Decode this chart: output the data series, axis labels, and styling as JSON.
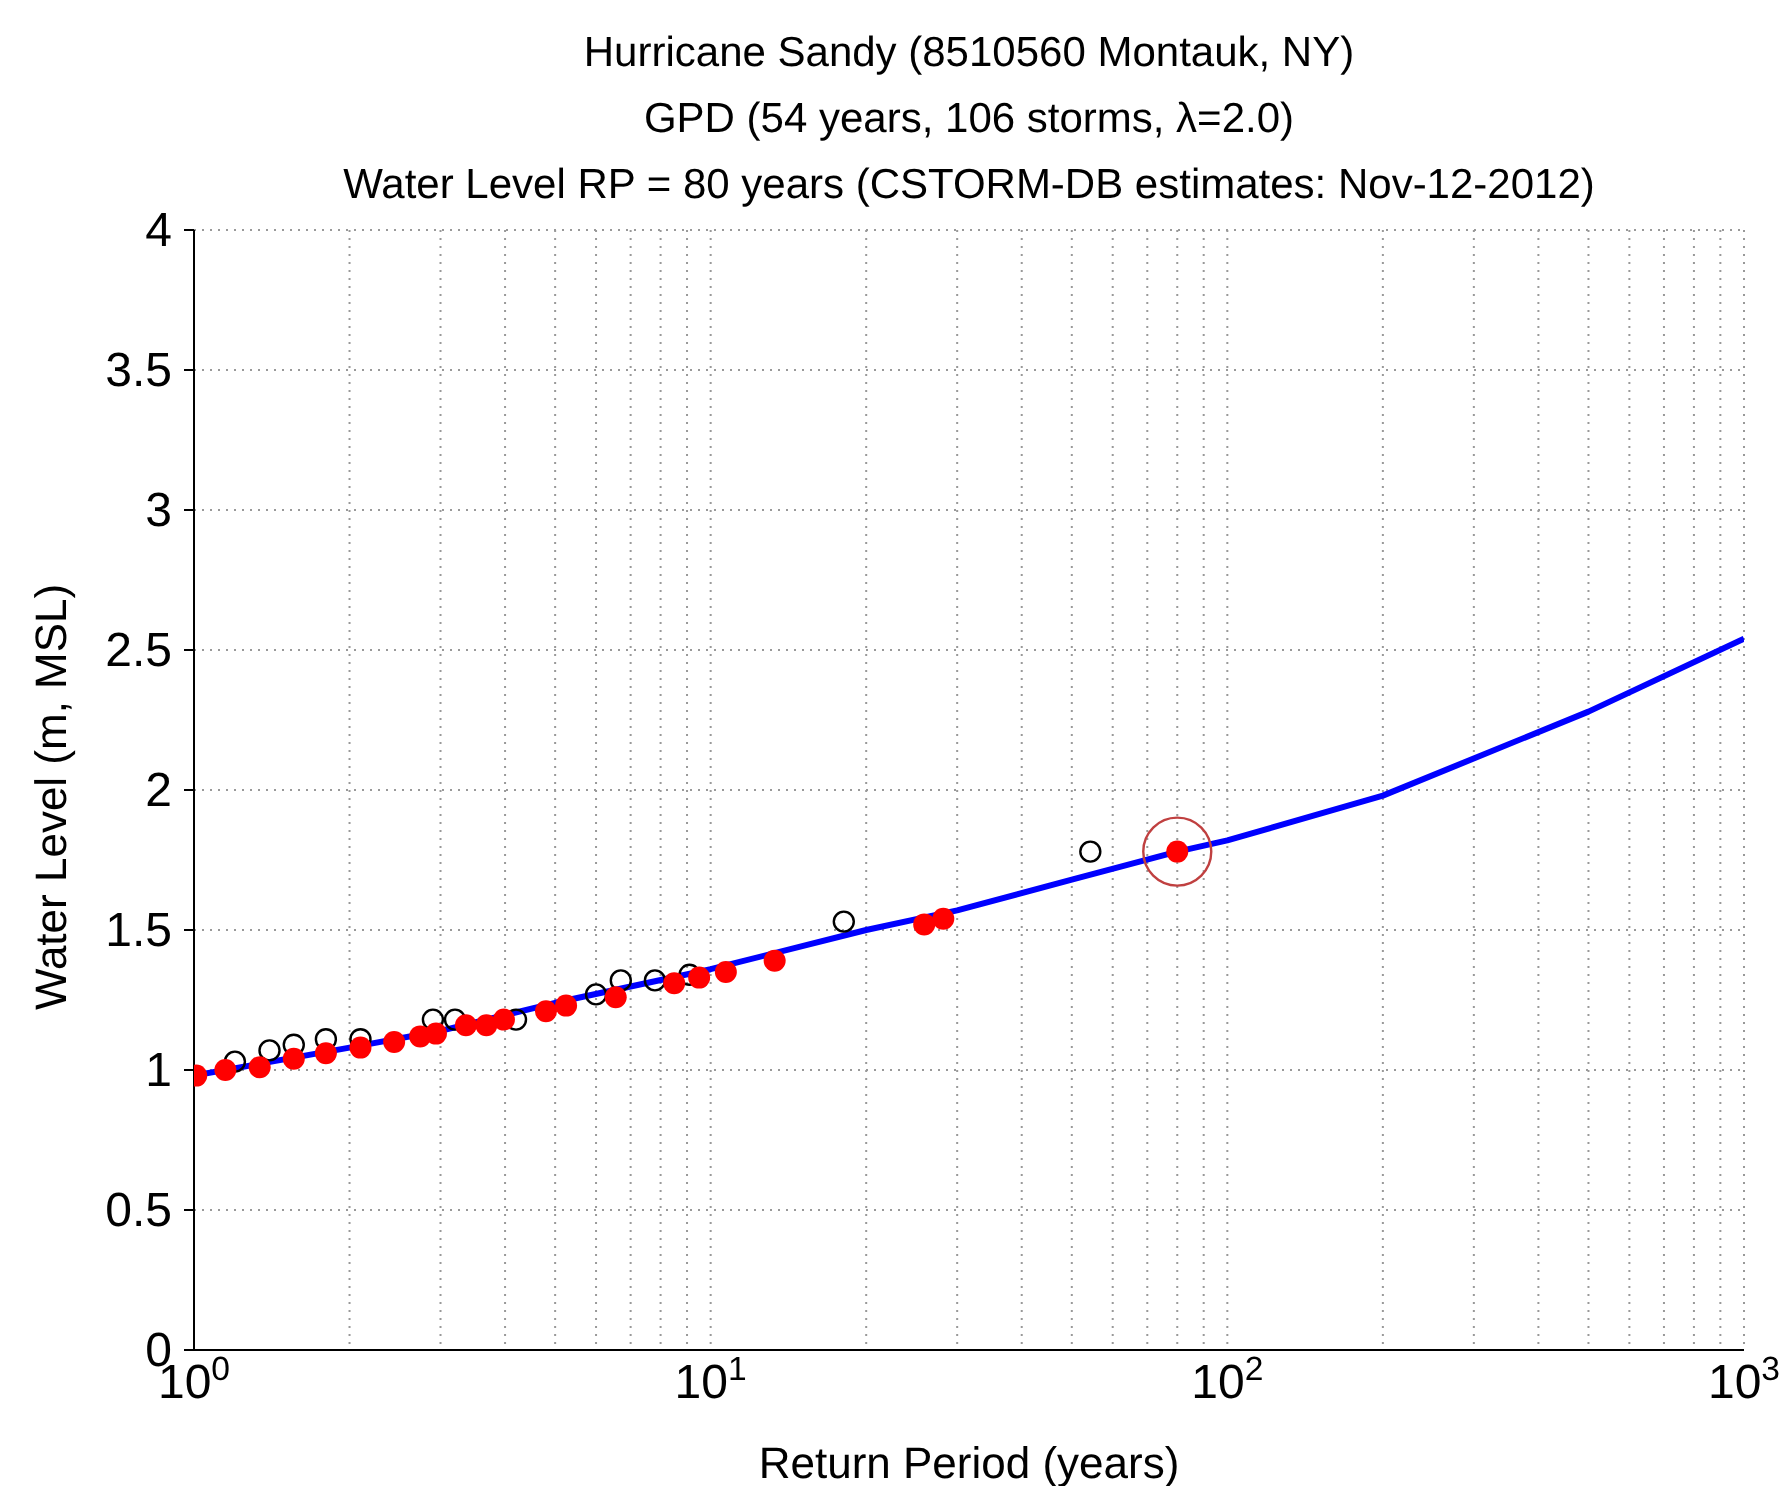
{
  "chart_data": {
    "type": "scatter",
    "title": "Hurricane Sandy (8510560 Montauk, NY)\nGPD (54 years, 106 storms, λ=2.0)\nWater Level RP = 80 years (CSTORM-DB estimates: Nov-12-2012)",
    "xlabel": "Return Period (years)",
    "ylabel": "Water Level (m, MSL)",
    "log": "x",
    "grid": true,
    "xlim": [
      1,
      1000
    ],
    "ylim": [
      0,
      4
    ],
    "xticks": [
      {
        "value": 1,
        "label": "10$^{0}$"
      },
      {
        "value": 2,
        "label": null
      },
      {
        "value": 3,
        "label": null
      },
      {
        "value": 4,
        "label": null
      },
      {
        "value": 5,
        "label": null
      },
      {
        "value": 6,
        "label": null
      },
      {
        "value": 7,
        "label": null
      },
      {
        "value": 8,
        "label": null
      },
      {
        "value": 9,
        "label": null
      },
      {
        "value": 10,
        "label": "10$^{1}$"
      },
      {
        "value": 20,
        "label": null
      },
      {
        "value": 30,
        "label": null
      },
      {
        "value": 40,
        "label": null
      },
      {
        "value": 50,
        "label": null
      },
      {
        "value": 60,
        "label": null
      },
      {
        "value": 70,
        "label": null
      },
      {
        "value": 80,
        "label": null
      },
      {
        "value": 90,
        "label": null
      },
      {
        "value": 100,
        "label": "10$^{2}$"
      },
      {
        "value": 200,
        "label": null
      },
      {
        "value": 300,
        "label": null
      },
      {
        "value": 400,
        "label": null
      },
      {
        "value": 500,
        "label": null
      },
      {
        "value": 600,
        "label": null
      },
      {
        "value": 700,
        "label": null
      },
      {
        "value": 800,
        "label": null
      },
      {
        "value": 900,
        "label": null
      },
      {
        "value": 1000,
        "label": "10$^{3}$"
      }
    ],
    "yticks": [
      0,
      0.5,
      1,
      1.5,
      2,
      2.5,
      3,
      3.5,
      4
    ],
    "series": [
      {
        "type": "line",
        "color": "#0000ff",
        "marker": "none",
        "line_style": "solid",
        "x": [
          1,
          2,
          3,
          5,
          10,
          20,
          30,
          50,
          80,
          100,
          200,
          500,
          1000
        ],
        "values": [
          0.98,
          1.08,
          1.14,
          1.24,
          1.36,
          1.5,
          1.57,
          1.68,
          1.78,
          1.82,
          1.98,
          2.28,
          2.54
        ]
      },
      {
        "color": "#000000",
        "marker": "circle",
        "x": [
          1.2,
          1.4,
          1.56,
          1.8,
          2.1,
          2.9,
          3.2,
          4.2,
          6.0,
          6.7,
          7.8,
          9.1,
          18.1,
          54.3
        ],
        "values": [
          1.03,
          1.07,
          1.09,
          1.11,
          1.11,
          1.18,
          1.18,
          1.18,
          1.27,
          1.32,
          1.32,
          1.34,
          1.53,
          1.78
        ]
      },
      {
        "color": "#ff0000",
        "marker": "circle",
        "x": [
          1.01,
          1.15,
          1.34,
          1.56,
          1.8,
          2.1,
          2.44,
          2.74,
          2.94,
          3.36,
          3.68,
          3.98,
          4.8,
          5.25,
          6.55,
          8.5,
          9.5,
          10.7,
          13.3,
          25.9,
          28.2,
          80
        ],
        "values": [
          0.98,
          1.0,
          1.01,
          1.04,
          1.06,
          1.08,
          1.1,
          1.12,
          1.13,
          1.16,
          1.16,
          1.18,
          1.21,
          1.23,
          1.26,
          1.31,
          1.33,
          1.35,
          1.39,
          1.52,
          1.54,
          1.78
        ]
      },
      {
        "type": "bubble",
        "color": "#c04040",
        "x": [
          80
        ],
        "values": [
          1.78
        ],
        "sizes": [
          1
        ]
      }
    ]
  }
}
